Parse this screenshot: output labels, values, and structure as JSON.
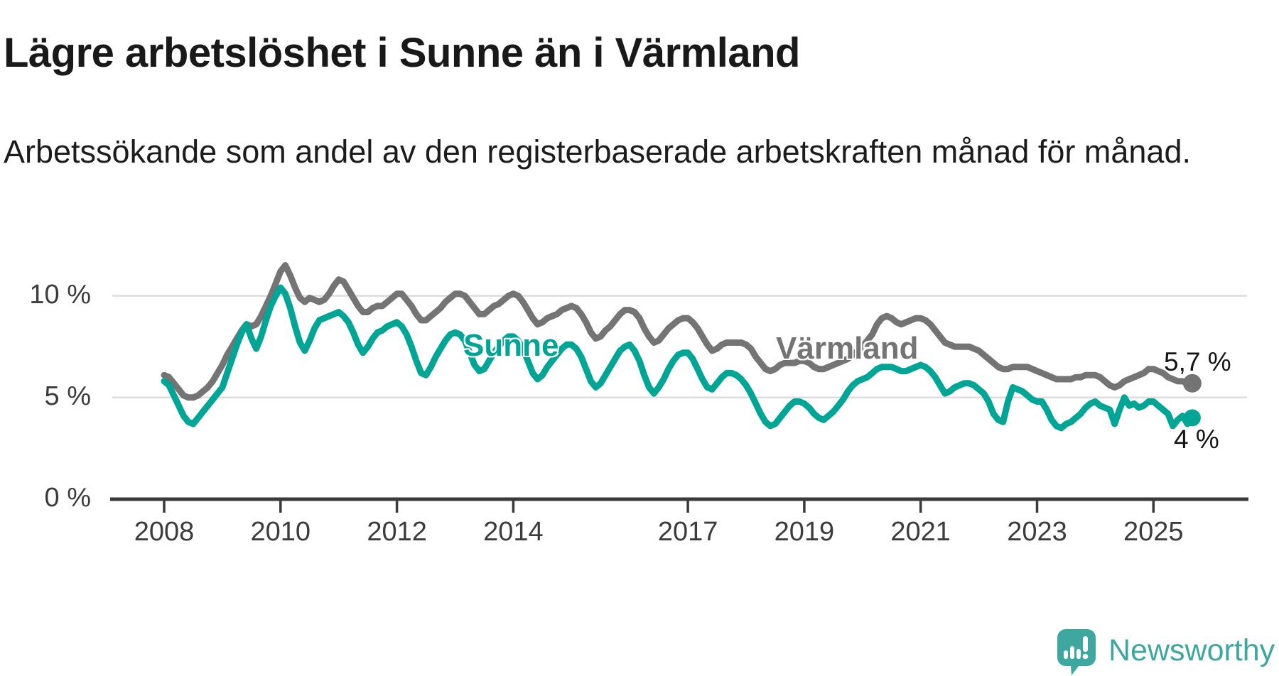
{
  "header": {
    "title": "Lägre arbetslöshet i Sunne än i Värmland",
    "subtitle": "Arbetssökande som andel av den registerbaserade arbetskraften månad för månad."
  },
  "colors": {
    "sunne_teal": "#00a596",
    "varmland_gray": "#747474",
    "gridline": "#dcdcdc",
    "axis": "#3a3a3a",
    "axis_text": "#3c3c3c",
    "logo_teal": "#3ea79f"
  },
  "chart_data": {
    "type": "line",
    "title": "Lägre arbetslöshet i Sunne än i Värmland",
    "subtitle": "Arbetssökande som andel av den registerbaserade arbetskraften månad för månad.",
    "x_start": "2008-01",
    "x_end": "2025-09",
    "x_frequency": "monthly",
    "x_tick_labels": [
      "2008",
      "2010",
      "2012",
      "2014",
      "2017",
      "2019",
      "2021",
      "2023",
      "2025"
    ],
    "y_tick_labels": [
      "0 %",
      "5 %",
      "10 %"
    ],
    "ylim": [
      0,
      12.3
    ],
    "grid": "horizontal",
    "legend_position": "inline-labels",
    "series": [
      {
        "name": "Värmland",
        "color": "#747474",
        "end_label": "5,7 %",
        "end_value": 5.7,
        "values": [
          6.1,
          6.0,
          5.7,
          5.4,
          5.1,
          5.0,
          5.0,
          5.1,
          5.3,
          5.5,
          5.8,
          6.2,
          6.6,
          7.1,
          7.5,
          7.9,
          8.3,
          8.6,
          8.5,
          8.6,
          9.0,
          9.5,
          10.0,
          10.6,
          11.2,
          11.5,
          11.0,
          10.4,
          9.9,
          9.7,
          9.9,
          9.8,
          9.7,
          9.8,
          10.1,
          10.5,
          10.8,
          10.7,
          10.3,
          9.9,
          9.5,
          9.2,
          9.2,
          9.4,
          9.5,
          9.5,
          9.7,
          9.9,
          10.1,
          10.1,
          9.8,
          9.5,
          9.1,
          8.8,
          8.8,
          9.0,
          9.2,
          9.4,
          9.7,
          9.9,
          10.1,
          10.1,
          10.0,
          9.7,
          9.4,
          9.1,
          9.1,
          9.3,
          9.5,
          9.6,
          9.8,
          10.0,
          10.1,
          10.0,
          9.7,
          9.3,
          8.9,
          8.6,
          8.7,
          8.9,
          9.0,
          9.1,
          9.3,
          9.4,
          9.5,
          9.4,
          9.1,
          8.7,
          8.2,
          7.9,
          8.0,
          8.3,
          8.5,
          8.8,
          9.1,
          9.3,
          9.3,
          9.2,
          8.9,
          8.4,
          8.0,
          7.7,
          7.8,
          8.1,
          8.4,
          8.6,
          8.8,
          8.9,
          8.9,
          8.7,
          8.4,
          8.0,
          7.6,
          7.3,
          7.4,
          7.6,
          7.7,
          7.7,
          7.7,
          7.7,
          7.6,
          7.4,
          7.0,
          6.7,
          6.4,
          6.3,
          6.4,
          6.6,
          6.7,
          6.7,
          6.7,
          6.8,
          6.8,
          6.7,
          6.5,
          6.4,
          6.4,
          6.5,
          6.6,
          6.7,
          6.8,
          6.9,
          7.1,
          7.3,
          7.5,
          7.8,
          8.1,
          8.6,
          8.9,
          9.0,
          8.9,
          8.7,
          8.6,
          8.7,
          8.8,
          8.9,
          8.9,
          8.8,
          8.6,
          8.3,
          8.0,
          7.7,
          7.6,
          7.5,
          7.5,
          7.5,
          7.5,
          7.4,
          7.3,
          7.1,
          6.9,
          6.7,
          6.5,
          6.4,
          6.4,
          6.5,
          6.5,
          6.5,
          6.5,
          6.4,
          6.3,
          6.2,
          6.1,
          6.0,
          5.9,
          5.9,
          5.9,
          5.9,
          6.0,
          6.0,
          6.1,
          6.1,
          6.1,
          6.0,
          5.8,
          5.6,
          5.5,
          5.6,
          5.8,
          5.9,
          6.0,
          6.1,
          6.2,
          6.4,
          6.4,
          6.3,
          6.2,
          6.0,
          5.9,
          5.8,
          5.8,
          5.7,
          5.7
        ]
      },
      {
        "name": "Sunne",
        "color": "#00a596",
        "end_label": "4 %",
        "end_value": 4.0,
        "values": [
          5.8,
          5.6,
          5.1,
          4.6,
          4.1,
          3.8,
          3.7,
          4.0,
          4.3,
          4.6,
          4.9,
          5.2,
          5.5,
          6.2,
          6.9,
          7.6,
          8.2,
          8.6,
          7.9,
          7.4,
          8.0,
          8.8,
          9.5,
          10.0,
          10.4,
          10.1,
          9.4,
          8.5,
          7.7,
          7.3,
          7.8,
          8.4,
          8.8,
          8.9,
          9.0,
          9.1,
          9.2,
          9.0,
          8.7,
          8.2,
          7.6,
          7.2,
          7.5,
          7.9,
          8.2,
          8.3,
          8.5,
          8.6,
          8.7,
          8.5,
          8.1,
          7.5,
          6.8,
          6.2,
          6.1,
          6.5,
          7.0,
          7.4,
          7.8,
          8.1,
          8.2,
          8.1,
          7.8,
          7.2,
          6.6,
          6.3,
          6.4,
          6.8,
          7.2,
          7.5,
          7.8,
          8.0,
          8.0,
          7.8,
          7.4,
          6.8,
          6.2,
          5.9,
          6.1,
          6.5,
          6.8,
          7.1,
          7.4,
          7.6,
          7.6,
          7.4,
          7.0,
          6.4,
          5.8,
          5.5,
          5.7,
          6.1,
          6.5,
          6.9,
          7.3,
          7.5,
          7.6,
          7.3,
          6.8,
          6.1,
          5.5,
          5.2,
          5.5,
          5.9,
          6.4,
          6.8,
          7.1,
          7.2,
          7.2,
          6.9,
          6.4,
          5.9,
          5.5,
          5.4,
          5.7,
          6.0,
          6.2,
          6.2,
          6.1,
          5.9,
          5.6,
          5.2,
          4.7,
          4.2,
          3.8,
          3.6,
          3.7,
          4.0,
          4.3,
          4.6,
          4.8,
          4.8,
          4.7,
          4.5,
          4.2,
          4.0,
          3.9,
          4.1,
          4.3,
          4.6,
          4.9,
          5.3,
          5.6,
          5.8,
          5.9,
          6.0,
          6.2,
          6.4,
          6.5,
          6.5,
          6.5,
          6.4,
          6.3,
          6.3,
          6.4,
          6.5,
          6.6,
          6.5,
          6.3,
          6.0,
          5.6,
          5.2,
          5.3,
          5.5,
          5.6,
          5.7,
          5.7,
          5.6,
          5.4,
          5.2,
          4.8,
          4.2,
          3.9,
          3.8,
          4.8,
          5.5,
          5.4,
          5.3,
          5.1,
          4.9,
          4.8,
          4.8,
          4.4,
          3.9,
          3.6,
          3.5,
          3.7,
          3.8,
          4.0,
          4.2,
          4.5,
          4.7,
          4.8,
          4.6,
          4.5,
          4.4,
          3.7,
          4.4,
          5.0,
          4.6,
          4.7,
          4.5,
          4.6,
          4.8,
          4.8,
          4.6,
          4.4,
          4.2,
          3.6,
          3.9,
          4.1,
          3.7,
          4.0
        ]
      }
    ]
  },
  "logo": {
    "text": "Newsworthy",
    "icon": "newsworthy-speech-bubble-barchart-icon"
  }
}
